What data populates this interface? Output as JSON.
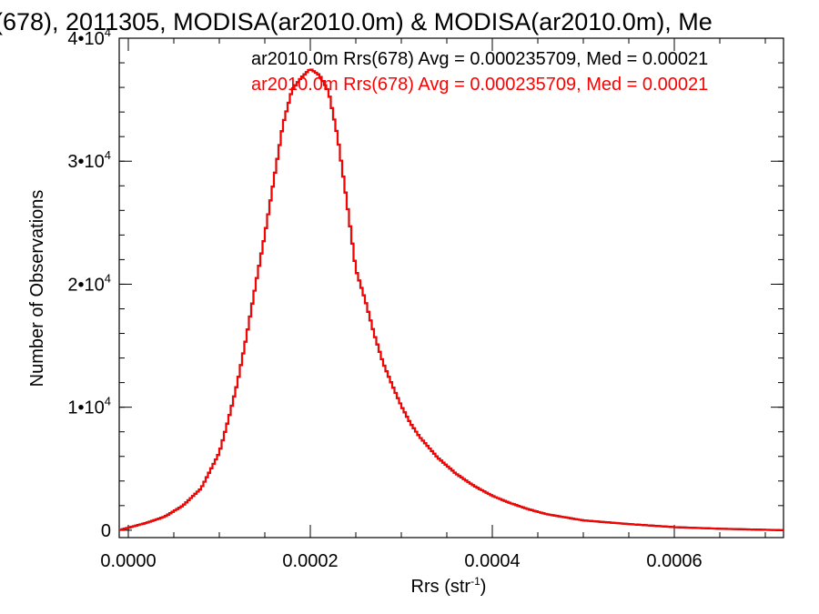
{
  "chart_data": {
    "type": "line",
    "title": "(678), 2011305, MODISA(ar2010.0m) & MODISA(ar2010.0m), Me",
    "xlabel_base": "Rrs (str",
    "xlabel_sup": "-1",
    "xlabel_end": ")",
    "ylabel": "Number of Observations",
    "xlim": [
      -1e-05,
      0.00072
    ],
    "ylim": [
      -600,
      40000
    ],
    "x_ticks": [
      {
        "value": 0.0,
        "label": "0.0000"
      },
      {
        "value": 0.0002,
        "label": "0.0002"
      },
      {
        "value": 0.0004,
        "label": "0.0004"
      },
      {
        "value": 0.0006,
        "label": "0.0006"
      }
    ],
    "x_minor_step": 5e-05,
    "y_ticks": [
      {
        "value": 0,
        "label": "0",
        "sup": ""
      },
      {
        "value": 10000,
        "label": "1•10",
        "sup": "4"
      },
      {
        "value": 20000,
        "label": "2•10",
        "sup": "4"
      },
      {
        "value": 30000,
        "label": "3•10",
        "sup": "4"
      },
      {
        "value": 40000,
        "label": "4•10",
        "sup": "4"
      }
    ],
    "y_minor_step": 2000,
    "legend_placement": "top-right",
    "series": [
      {
        "name": "ar2010.0m Rrs(678) Avg = 0.000235709, Med = 0.00021",
        "color": "#000000",
        "x": [
          -1e-05,
          0.0,
          2e-05,
          4e-05,
          6e-05,
          8e-05,
          0.0001,
          0.00011,
          0.00012,
          0.00013,
          0.00014,
          0.00015,
          0.00016,
          0.00017,
          0.00018,
          0.00019,
          0.0002,
          0.00021,
          0.00022,
          0.00023,
          0.00024,
          0.00025,
          0.00026,
          0.00027,
          0.00028,
          0.00029,
          0.0003,
          0.00031,
          0.00032,
          0.00034,
          0.00036,
          0.00038,
          0.0004,
          0.00042,
          0.00044,
          0.00046,
          0.0005,
          0.00055,
          0.0006,
          0.00065,
          0.00072
        ],
        "values": [
          0,
          200,
          600,
          1100,
          2000,
          3400,
          6300,
          9000,
          12000,
          15800,
          20000,
          24000,
          28500,
          33000,
          35800,
          36800,
          37500,
          37000,
          35700,
          32000,
          26800,
          21200,
          18800,
          16000,
          13600,
          11800,
          10100,
          8700,
          7600,
          5900,
          4600,
          3600,
          2800,
          2200,
          1700,
          1300,
          800,
          500,
          250,
          120,
          0
        ]
      },
      {
        "name": "ar2010.0m Rrs(678) Avg = 0.000235709, Med = 0.00021",
        "color": "#ff0000",
        "x": [
          -1e-05,
          0.0,
          2e-05,
          4e-05,
          6e-05,
          8e-05,
          0.0001,
          0.00011,
          0.00012,
          0.00013,
          0.00014,
          0.00015,
          0.00016,
          0.00017,
          0.00018,
          0.00019,
          0.0002,
          0.00021,
          0.00022,
          0.00023,
          0.00024,
          0.00025,
          0.00026,
          0.00027,
          0.00028,
          0.00029,
          0.0003,
          0.00031,
          0.00032,
          0.00034,
          0.00036,
          0.00038,
          0.0004,
          0.00042,
          0.00044,
          0.00046,
          0.0005,
          0.00055,
          0.0006,
          0.00065,
          0.00072
        ],
        "values": [
          0,
          200,
          600,
          1100,
          2000,
          3400,
          6300,
          9000,
          12000,
          15800,
          20000,
          24000,
          28500,
          33000,
          35800,
          36800,
          37500,
          37000,
          35700,
          32000,
          26800,
          21200,
          18800,
          16000,
          13600,
          11800,
          10100,
          8700,
          7600,
          5900,
          4600,
          3600,
          2800,
          2200,
          1700,
          1300,
          800,
          500,
          250,
          120,
          0
        ]
      }
    ]
  }
}
